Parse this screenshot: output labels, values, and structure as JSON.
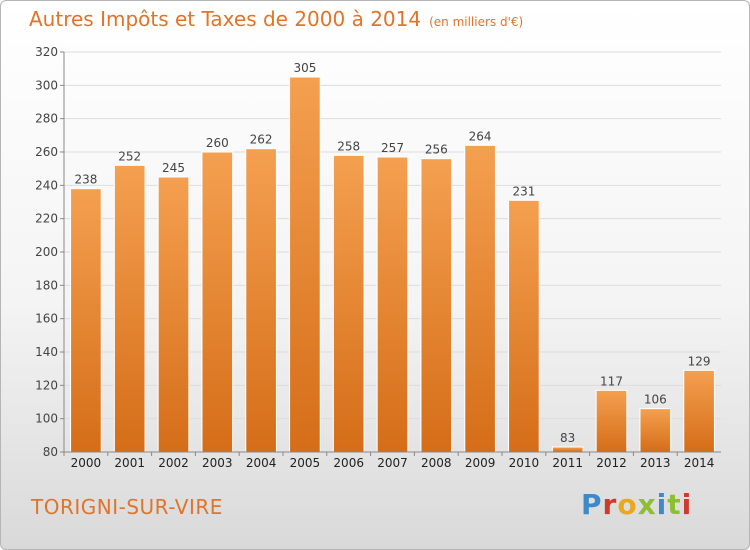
{
  "header": {
    "title": "Autres Impôts et Taxes de 2000 à 2014",
    "subtitle": "(en milliers d'€)"
  },
  "footer": {
    "commune": "TORIGNI-SUR-VIRE",
    "logo_letters": [
      "P",
      "r",
      "o",
      "x",
      "i",
      "t",
      "i"
    ]
  },
  "colors": {
    "accent": "#e0742a",
    "bar_top": "#f4a050",
    "bar_bottom": "#d56d18"
  },
  "chart_data": {
    "type": "bar",
    "title": "Autres Impôts et Taxes de 2000 à 2014",
    "subtitle": "(en milliers d'€)",
    "categories": [
      "2000",
      "2001",
      "2002",
      "2003",
      "2004",
      "2005",
      "2006",
      "2007",
      "2008",
      "2009",
      "2010",
      "2011",
      "2012",
      "2013",
      "2014"
    ],
    "values": [
      238,
      252,
      245,
      260,
      262,
      305,
      258,
      257,
      256,
      264,
      231,
      83,
      117,
      106,
      129
    ],
    "ylim": [
      80,
      320
    ],
    "yticks": [
      80,
      100,
      120,
      140,
      160,
      180,
      200,
      220,
      240,
      260,
      280,
      300,
      320
    ],
    "grid": true,
    "data_labels": true
  }
}
